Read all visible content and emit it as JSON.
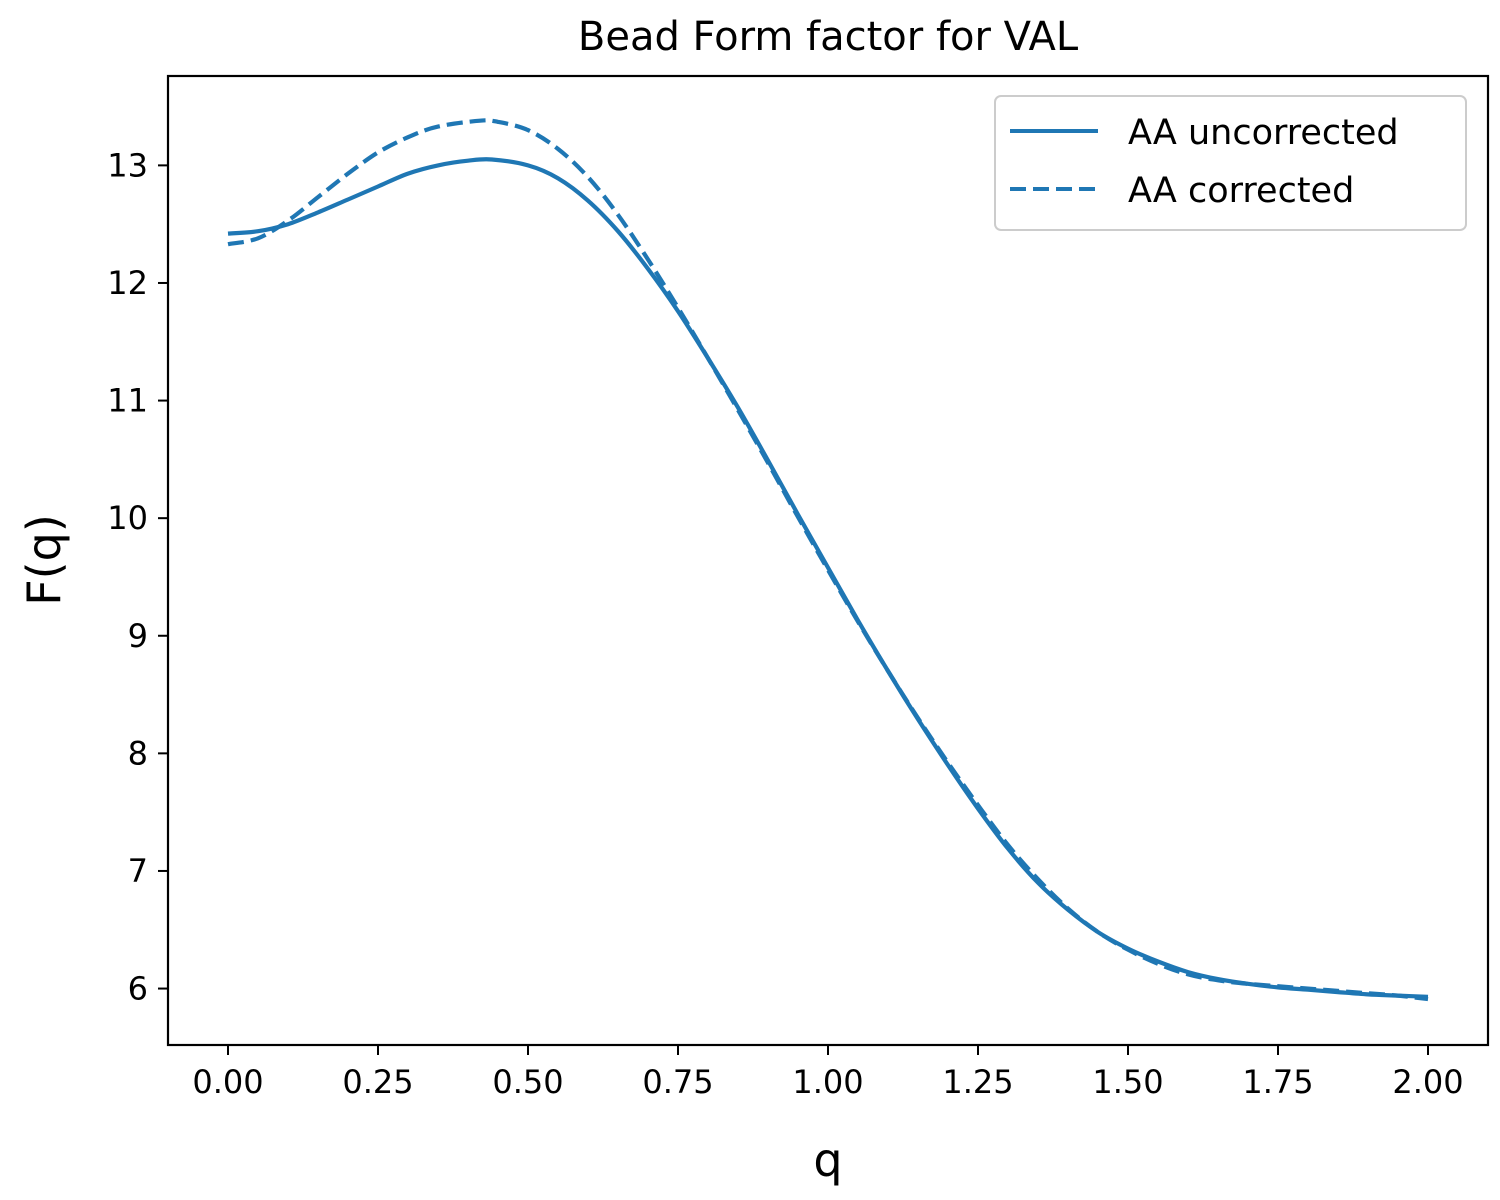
{
  "chart_data": {
    "type": "line",
    "title": "Bead Form factor for VAL",
    "xlabel": "q",
    "ylabel": "F(q)",
    "xlim": [
      -0.1,
      2.1
    ],
    "ylim": [
      5.52,
      13.76
    ],
    "xticks": [
      "0.00",
      "0.25",
      "0.50",
      "0.75",
      "1.00",
      "1.25",
      "1.50",
      "1.75",
      "2.00"
    ],
    "yticks": [
      "6",
      "7",
      "8",
      "9",
      "10",
      "11",
      "12",
      "13"
    ],
    "grid": false,
    "legend_position": "top-right",
    "color": "#1f77b4",
    "series": [
      {
        "name": "AA uncorrected",
        "style": "solid",
        "x": [
          0.0,
          0.05,
          0.1,
          0.15,
          0.2,
          0.25,
          0.3,
          0.35,
          0.4,
          0.44,
          0.5,
          0.55,
          0.6,
          0.65,
          0.7,
          0.75,
          0.8,
          0.85,
          0.9,
          0.95,
          1.0,
          1.05,
          1.1,
          1.15,
          1.2,
          1.25,
          1.3,
          1.35,
          1.4,
          1.45,
          1.5,
          1.55,
          1.6,
          1.65,
          1.7,
          1.75,
          1.8,
          1.85,
          1.9,
          1.95,
          2.0
        ],
        "y": [
          12.42,
          12.44,
          12.5,
          12.6,
          12.71,
          12.82,
          12.93,
          13.0,
          13.04,
          13.05,
          13.0,
          12.89,
          12.7,
          12.44,
          12.12,
          11.76,
          11.36,
          10.94,
          10.49,
          10.03,
          9.58,
          9.13,
          8.7,
          8.29,
          7.9,
          7.53,
          7.19,
          6.9,
          6.67,
          6.48,
          6.34,
          6.23,
          6.14,
          6.08,
          6.04,
          6.01,
          5.99,
          5.97,
          5.95,
          5.94,
          5.93
        ]
      },
      {
        "name": "AA corrected",
        "style": "dashed",
        "x": [
          0.0,
          0.05,
          0.1,
          0.15,
          0.2,
          0.25,
          0.3,
          0.35,
          0.42,
          0.45,
          0.5,
          0.55,
          0.6,
          0.65,
          0.7,
          0.75,
          0.8,
          0.85,
          0.9,
          0.95,
          1.0,
          1.05,
          1.1,
          1.15,
          1.2,
          1.25,
          1.3,
          1.35,
          1.4,
          1.45,
          1.5,
          1.55,
          1.6,
          1.65,
          1.7,
          1.75,
          1.8,
          1.85,
          1.9,
          1.95,
          2.0
        ],
        "y": [
          12.33,
          12.38,
          12.53,
          12.73,
          12.93,
          13.11,
          13.24,
          13.33,
          13.38,
          13.37,
          13.3,
          13.14,
          12.9,
          12.58,
          12.2,
          11.79,
          11.36,
          10.92,
          10.47,
          10.01,
          9.56,
          9.12,
          8.7,
          8.3,
          7.92,
          7.56,
          7.22,
          6.93,
          6.68,
          6.48,
          6.33,
          6.21,
          6.12,
          6.07,
          6.04,
          6.02,
          6.0,
          5.98,
          5.96,
          5.94,
          5.91
        ]
      }
    ]
  }
}
